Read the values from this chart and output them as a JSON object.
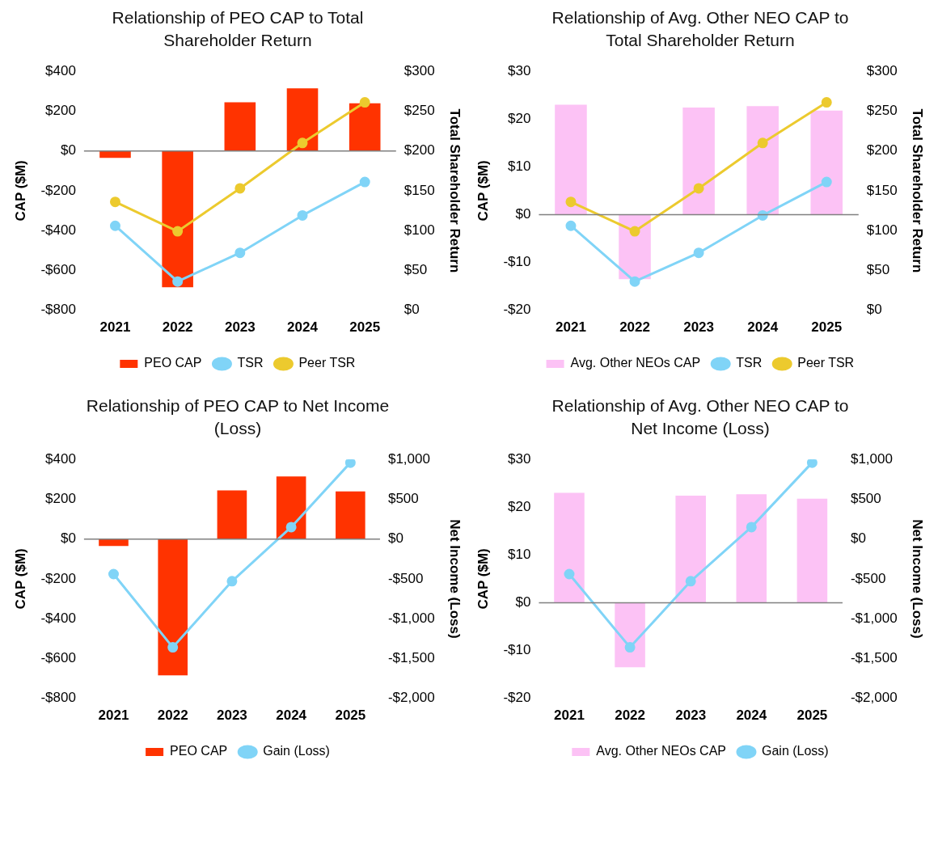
{
  "chart_data": [
    {
      "type": "bar",
      "title": "Relationship of PEO CAP to Total Shareholder Return",
      "ylabel": "CAP ($M)",
      "y2label": "Total Shareholder Return",
      "categories": [
        "2021",
        "2022",
        "2023",
        "2024",
        "2025"
      ],
      "series": [
        {
          "name": "PEO CAP",
          "color": "#ff3300",
          "values": [
            -35,
            -685,
            244,
            314,
            239
          ]
        },
        {
          "name": "TSR",
          "type": "line",
          "axis": "y2",
          "color": "#80d4f7",
          "values": [
            106,
            36,
            72,
            119,
            161
          ]
        },
        {
          "name": "Peer TSR",
          "type": "line",
          "axis": "y2",
          "color": "#ecca2e",
          "values": [
            136,
            99,
            153,
            210,
            261
          ]
        }
      ],
      "ylim": [
        -800,
        400
      ],
      "yticks": [
        {
          "value": -800,
          "label": "-$800"
        },
        {
          "value": -600,
          "label": "-$600"
        },
        {
          "value": -400,
          "label": "-$400"
        },
        {
          "value": -200,
          "label": "-$200"
        },
        {
          "value": 0,
          "label": "$0"
        },
        {
          "value": 200,
          "label": "$200"
        },
        {
          "value": 400,
          "label": "$400"
        }
      ],
      "y2lim": [
        0,
        300
      ],
      "y2ticks": [
        {
          "value": 0,
          "label": "$0"
        },
        {
          "value": 50,
          "label": "$50"
        },
        {
          "value": 100,
          "label": "$100"
        },
        {
          "value": 150,
          "label": "$150"
        },
        {
          "value": 200,
          "label": "$200"
        },
        {
          "value": 250,
          "label": "$250"
        },
        {
          "value": 300,
          "label": "$300"
        }
      ],
      "ref_lines": [
        {
          "axis": "y",
          "value": 0,
          "color": "#808080"
        }
      ],
      "grid": false,
      "legend": "bottom",
      "marker": "circle"
    },
    {
      "type": "bar",
      "title": "Relationship of Avg. Other NEO CAP to Total Shareholder Return",
      "ylabel": "CAP ($M)",
      "y2label": "Total Shareholder Return",
      "categories": [
        "2021",
        "2022",
        "2023",
        "2024",
        "2025"
      ],
      "series": [
        {
          "name": "Avg. Other NEOs CAP",
          "color": "#fcc2f5",
          "values": [
            23.0,
            -13.5,
            22.4,
            22.7,
            21.8
          ]
        },
        {
          "name": "TSR",
          "type": "line",
          "axis": "y2",
          "color": "#80d4f7",
          "values": [
            106,
            36,
            72,
            119,
            161
          ]
        },
        {
          "name": "Peer TSR",
          "type": "line",
          "axis": "y2",
          "color": "#ecca2e",
          "values": [
            136,
            99,
            153,
            210,
            261
          ]
        }
      ],
      "ylim": [
        -20,
        30
      ],
      "yticks": [
        {
          "value": -20,
          "label": "-$20"
        },
        {
          "value": -10,
          "label": "-$10"
        },
        {
          "value": 0,
          "label": "$0"
        },
        {
          "value": 10,
          "label": "$10"
        },
        {
          "value": 20,
          "label": "$20"
        },
        {
          "value": 30,
          "label": "$30"
        }
      ],
      "y2lim": [
        0,
        300
      ],
      "y2ticks": [
        {
          "value": 0,
          "label": "$0"
        },
        {
          "value": 50,
          "label": "$50"
        },
        {
          "value": 100,
          "label": "$100"
        },
        {
          "value": 150,
          "label": "$150"
        },
        {
          "value": 200,
          "label": "$200"
        },
        {
          "value": 250,
          "label": "$250"
        },
        {
          "value": 300,
          "label": "$300"
        }
      ],
      "ref_lines": [
        {
          "axis": "y",
          "value": 0,
          "color": "#808080"
        }
      ],
      "grid": false,
      "legend": "bottom",
      "marker": "circle"
    },
    {
      "type": "bar",
      "title": "Relationship of PEO CAP to Net Income (Loss)",
      "ylabel": "CAP ($M)",
      "y2label": "Net Income (Loss)",
      "categories": [
        "2021",
        "2022",
        "2023",
        "2024",
        "2025"
      ],
      "series": [
        {
          "name": "PEO CAP",
          "color": "#ff3300",
          "values": [
            -35,
            -685,
            244,
            314,
            239
          ]
        },
        {
          "name": "Gain (Loss)",
          "type": "line",
          "axis": "y2",
          "color": "#80d4f7",
          "values": [
            -440,
            -1360,
            -530,
            150,
            960
          ]
        }
      ],
      "ylim": [
        -800,
        400
      ],
      "yticks": [
        {
          "value": -800,
          "label": "-$800"
        },
        {
          "value": -600,
          "label": "-$600"
        },
        {
          "value": -400,
          "label": "-$400"
        },
        {
          "value": -200,
          "label": "-$200"
        },
        {
          "value": 0,
          "label": "$0"
        },
        {
          "value": 200,
          "label": "$200"
        },
        {
          "value": 400,
          "label": "$400"
        }
      ],
      "y2lim": [
        -2000,
        1000
      ],
      "y2ticks": [
        {
          "value": -2000,
          "label": "-$2,000"
        },
        {
          "value": -1500,
          "label": "-$1,500"
        },
        {
          "value": -1000,
          "label": "-$1,000"
        },
        {
          "value": -500,
          "label": "-$500"
        },
        {
          "value": 0,
          "label": "$0"
        },
        {
          "value": 500,
          "label": "$500"
        },
        {
          "value": 1000,
          "label": "$1,000"
        }
      ],
      "ref_lines": [
        {
          "axis": "y",
          "value": 0,
          "color": "#808080"
        }
      ],
      "grid": false,
      "legend": "bottom",
      "marker": "circle"
    },
    {
      "type": "bar",
      "title": "Relationship of Avg. Other NEO CAP to Net Income (Loss)",
      "ylabel": "CAP ($M)",
      "y2label": "Net Income (Loss)",
      "categories": [
        "2021",
        "2022",
        "2023",
        "2024",
        "2025"
      ],
      "series": [
        {
          "name": "Avg. Other NEOs CAP",
          "color": "#fcc2f5",
          "values": [
            23.0,
            -13.5,
            22.4,
            22.7,
            21.8
          ]
        },
        {
          "name": "Gain (Loss)",
          "type": "line",
          "axis": "y2",
          "color": "#80d4f7",
          "values": [
            -440,
            -1360,
            -530,
            150,
            960
          ]
        }
      ],
      "ylim": [
        -20,
        30
      ],
      "yticks": [
        {
          "value": -20,
          "label": "-$20"
        },
        {
          "value": -10,
          "label": "-$10"
        },
        {
          "value": 0,
          "label": "$0"
        },
        {
          "value": 10,
          "label": "$10"
        },
        {
          "value": 20,
          "label": "$20"
        },
        {
          "value": 30,
          "label": "$30"
        }
      ],
      "y2lim": [
        -2000,
        1000
      ],
      "y2ticks": [
        {
          "value": -2000,
          "label": "-$2,000"
        },
        {
          "value": -1500,
          "label": "-$1,500"
        },
        {
          "value": -1000,
          "label": "-$1,000"
        },
        {
          "value": -500,
          "label": "-$500"
        },
        {
          "value": 0,
          "label": "$0"
        },
        {
          "value": 500,
          "label": "$500"
        },
        {
          "value": 1000,
          "label": "$1,000"
        }
      ],
      "ref_lines": [
        {
          "axis": "y",
          "value": 0,
          "color": "#808080"
        }
      ],
      "grid": false,
      "legend": "bottom",
      "marker": "circle"
    }
  ]
}
